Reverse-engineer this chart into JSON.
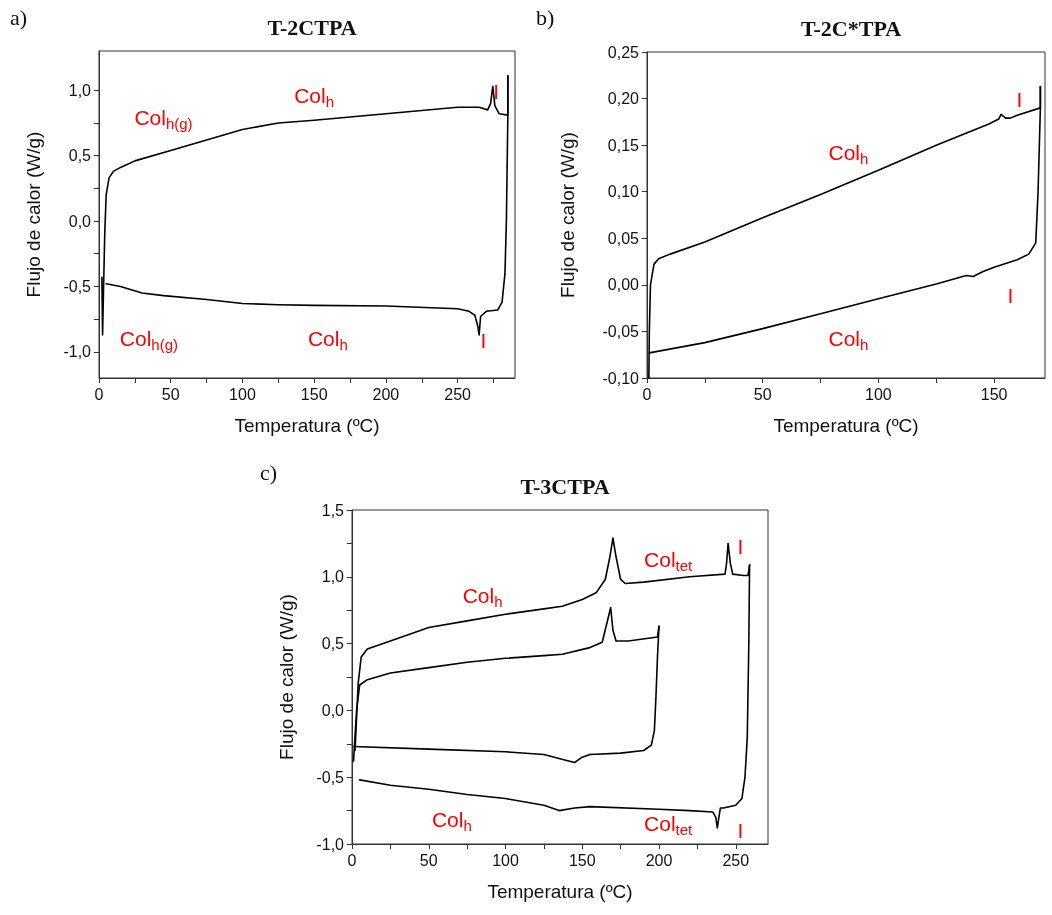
{
  "chart_data": [
    {
      "type": "line",
      "title": "T-2CTPA",
      "xlabel": "Temperatura (ºC)",
      "ylabel": "Flujo de calor (W/g)",
      "marker": "none",
      "xlim": [
        0,
        290
      ],
      "ylim": [
        -1.2,
        1.3
      ],
      "xticks": [
        0,
        {
          "value": 25,
          "label": null
        },
        50,
        {
          "value": 75,
          "label": null
        },
        100,
        {
          "value": 125,
          "label": null
        },
        150,
        {
          "value": 175,
          "label": null
        },
        200,
        {
          "value": 225,
          "label": null
        },
        250,
        {
          "value": 275,
          "label": null
        }
      ],
      "yticks": [
        {
          "value": -1.0,
          "label": "-1,0"
        },
        {
          "value": -0.75,
          "label": null
        },
        {
          "value": -0.5,
          "label": "-0,5"
        },
        {
          "value": -0.25,
          "label": null
        },
        {
          "value": 0,
          "label": "0,0"
        },
        {
          "value": 0.25,
          "label": null
        },
        {
          "value": 0.5,
          "label": "0,5"
        },
        {
          "value": 0.75,
          "label": null
        },
        {
          "value": 1.0,
          "label": "1,0"
        }
      ],
      "series": [
        {
          "color": "#000000",
          "x": [
            2,
            2.5,
            3,
            4,
            5,
            7,
            10,
            15,
            25,
            50,
            75,
            100,
            125,
            150,
            200,
            250,
            265,
            271,
            273,
            274.5,
            276,
            279,
            285,
            285
          ],
          "values": [
            -0.43,
            -0.87,
            -0.6,
            -0.1,
            0.2,
            0.33,
            0.38,
            0.41,
            0.46,
            0.54,
            0.62,
            0.7,
            0.75,
            0.77,
            0.82,
            0.87,
            0.87,
            0.85,
            0.9,
            1.03,
            0.88,
            0.82,
            0.81,
            1.11
          ]
        },
        {
          "color": "#000000",
          "x": [
            5,
            15,
            30,
            45,
            75,
            100,
            125,
            150,
            200,
            250,
            258,
            262,
            264,
            265,
            266,
            270,
            278,
            281,
            283,
            284,
            285,
            285
          ],
          "values": [
            -0.48,
            -0.5,
            -0.55,
            -0.57,
            -0.6,
            -0.63,
            -0.64,
            -0.645,
            -0.65,
            -0.67,
            -0.69,
            -0.72,
            -0.8,
            -0.87,
            -0.73,
            -0.69,
            -0.68,
            -0.62,
            -0.4,
            0,
            0.8,
            1.11
          ]
        }
      ],
      "annotations": [
        "a)",
        "Col$_{h(g)}$",
        "Col$_{h}$",
        "I",
        "Col$_{h(g)}$",
        "Col$_{h}$",
        "I"
      ]
    },
    {
      "type": "line",
      "title": "T-2C*TPA",
      "xlabel": "Temperatura (ºC)",
      "ylabel": "Flujo de calor (W/g)",
      "marker": "none",
      "xlim": [
        0,
        172
      ],
      "ylim": [
        -0.1,
        0.25
      ],
      "xticks": [
        0,
        {
          "value": 25,
          "label": null
        },
        50,
        {
          "value": 75,
          "label": null
        },
        100,
        {
          "value": 125,
          "label": null
        },
        150
      ],
      "yticks": [
        {
          "value": -0.1,
          "label": "-0,10"
        },
        {
          "value": -0.05,
          "label": "-0,05"
        },
        {
          "value": 0,
          "label": "0,00"
        },
        {
          "value": 0.05,
          "label": "0,05"
        },
        {
          "value": 0.1,
          "label": "0,10"
        },
        {
          "value": 0.15,
          "label": "0,15"
        },
        {
          "value": 0.2,
          "label": "0,20"
        },
        {
          "value": 0.25,
          "label": "0,25"
        }
      ],
      "series": [
        {
          "color": "#000000",
          "x": [
            0.8,
            1,
            1.5,
            3,
            5,
            10,
            25,
            50,
            75,
            100,
            125,
            148,
            152,
            153,
            155,
            157,
            160,
            170,
            170
          ],
          "values": [
            -0.1,
            -0.05,
            0,
            0.022,
            0.028,
            0.033,
            0.046,
            0.072,
            0.097,
            0.123,
            0.15,
            0.173,
            0.178,
            0.183,
            0.179,
            0.179,
            0.182,
            0.19,
            0.213
          ]
        },
        {
          "color": "#000000",
          "x": [
            1,
            25,
            50,
            75,
            100,
            125,
            138,
            141,
            145,
            150,
            160,
            165,
            168,
            169,
            170,
            170
          ],
          "values": [
            -0.073,
            -0.062,
            -0.047,
            -0.031,
            -0.015,
            0.001,
            0.01,
            0.009,
            0.014,
            0.019,
            0.027,
            0.033,
            0.045,
            0.1,
            0.19,
            0.213
          ]
        }
      ],
      "annotations": [
        "b)",
        "I",
        "Col$_{h}$",
        "I",
        "Col$_{h}$"
      ]
    },
    {
      "type": "line",
      "title": "T-3CTPA",
      "xlabel": "Temperatura (ºC)",
      "ylabel": "Flujo de calor (W/g)",
      "marker": "none",
      "xlim": [
        0,
        271
      ],
      "ylim": [
        -1.0,
        1.5
      ],
      "xticks": [
        0,
        {
          "value": 25,
          "label": null
        },
        50,
        {
          "value": 75,
          "label": null
        },
        100,
        {
          "value": 125,
          "label": null
        },
        150,
        {
          "value": 175,
          "label": null
        },
        200,
        {
          "value": 225,
          "label": null
        },
        250
      ],
      "yticks": [
        {
          "value": -1.0,
          "label": "-1,0"
        },
        {
          "value": -0.75,
          "label": null
        },
        {
          "value": -0.5,
          "label": "-0,5"
        },
        {
          "value": -0.25,
          "label": null
        },
        {
          "value": 0,
          "label": "0,0"
        },
        {
          "value": 0.25,
          "label": null
        },
        {
          "value": 0.5,
          "label": "0,5"
        },
        {
          "value": 0.75,
          "label": null
        },
        {
          "value": 1.0,
          "label": "1,0"
        },
        {
          "value": 1.25,
          "label": null
        },
        {
          "value": 1.5,
          "label": "1,5"
        }
      ],
      "series": [
        {
          "color": "#000000",
          "x": [
            1,
            3,
            5,
            10,
            25,
            50,
            75,
            100,
            125,
            137,
            155,
            163,
            166,
            168.5,
            170,
            172,
            180,
            199,
            200
          ],
          "values": [
            -0.38,
            0.0,
            0.19,
            0.23,
            0.28,
            0.32,
            0.36,
            0.39,
            0.41,
            0.42,
            0.47,
            0.51,
            0.65,
            0.77,
            0.6,
            0.52,
            0.52,
            0.55,
            0.63
          ]
        },
        {
          "color": "#000000",
          "x": [
            1,
            50,
            100,
            125,
            138,
            145,
            150,
            155,
            175,
            190,
            195,
            197,
            198,
            199,
            200
          ],
          "values": [
            -0.27,
            -0.29,
            -0.31,
            -0.33,
            -0.37,
            -0.39,
            -0.35,
            -0.33,
            -0.32,
            -0.3,
            -0.26,
            -0.15,
            0.1,
            0.4,
            0.63
          ]
        },
        {
          "color": "#000000",
          "x": [
            2,
            4,
            6,
            10,
            25,
            50,
            75,
            100,
            125,
            137,
            150,
            159,
            165,
            168,
            170,
            172,
            175,
            178,
            190,
            220,
            243,
            244,
            245,
            246.5,
            248,
            255,
            258,
            259
          ],
          "values": [
            -0.3,
            0.2,
            0.4,
            0.46,
            0.52,
            0.62,
            0.67,
            0.72,
            0.76,
            0.78,
            0.83,
            0.88,
            0.98,
            1.15,
            1.29,
            1.15,
            0.98,
            0.95,
            0.96,
            1.0,
            1.02,
            1.1,
            1.25,
            1.1,
            1.02,
            1.01,
            1.01,
            1.09
          ]
        },
        {
          "color": "#000000",
          "x": [
            5,
            25,
            50,
            75,
            100,
            125,
            135,
            145,
            155,
            200,
            220,
            235,
            237,
            238,
            239,
            240,
            242,
            250,
            254,
            256,
            257.5,
            258.5,
            259
          ],
          "values": [
            -0.52,
            -0.56,
            -0.59,
            -0.63,
            -0.66,
            -0.71,
            -0.75,
            -0.73,
            -0.72,
            -0.74,
            -0.75,
            -0.76,
            -0.8,
            -0.88,
            -0.8,
            -0.73,
            -0.73,
            -0.71,
            -0.66,
            -0.5,
            -0.2,
            0.5,
            1.09
          ]
        }
      ],
      "annotations": [
        "c)",
        "Col$_{tet}$",
        "I",
        "Col$_{h}$",
        "Col$_{h}$",
        "Col$_{tet}$",
        "I"
      ]
    }
  ]
}
